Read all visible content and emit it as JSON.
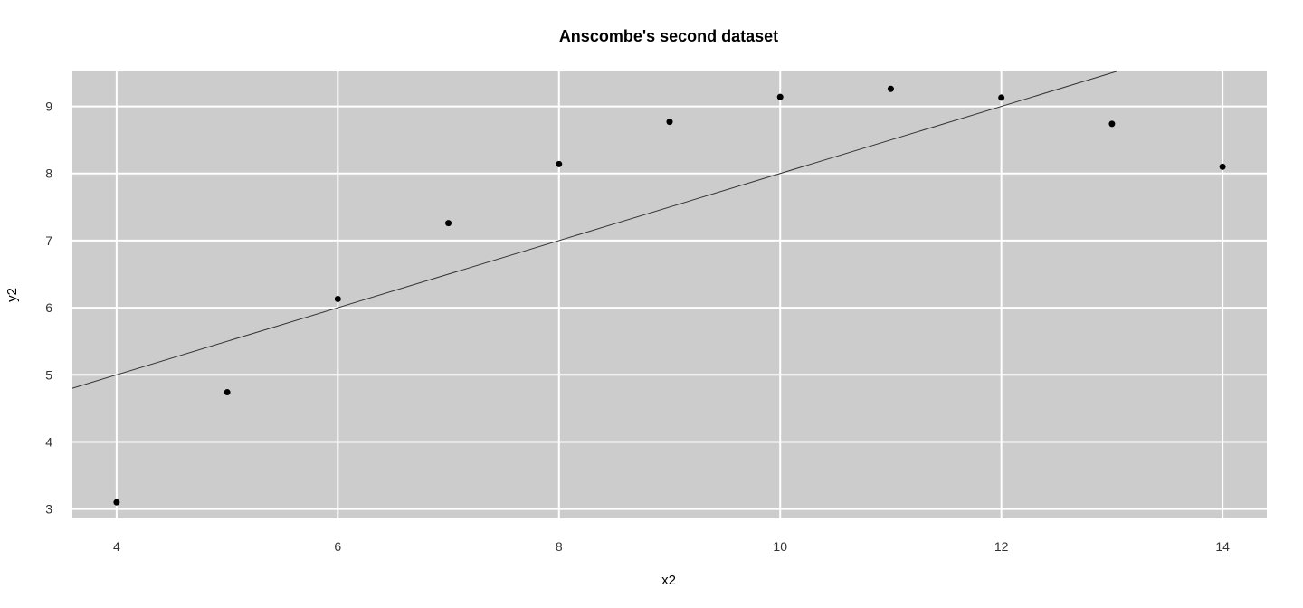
{
  "chart_data": {
    "type": "scatter",
    "title": "Anscombe's second dataset",
    "xlabel": "x2",
    "ylabel": "y2",
    "xlim": [
      3.6,
      14.4
    ],
    "ylim": [
      2.86,
      9.52
    ],
    "x_ticks": [
      4,
      6,
      8,
      10,
      12,
      14
    ],
    "y_ticks": [
      3,
      4,
      5,
      6,
      7,
      8,
      9
    ],
    "grid": true,
    "colors": {
      "panel_background": "#cccccc",
      "grid": "#ffffff",
      "points": "#000000",
      "line": "#333333"
    },
    "series": [
      {
        "x": [
          4,
          5,
          6,
          7,
          8,
          9,
          10,
          11,
          12,
          13,
          14
        ],
        "y": [
          3.1,
          4.74,
          6.13,
          7.26,
          8.14,
          8.77,
          9.14,
          9.26,
          9.13,
          8.74,
          8.1
        ]
      }
    ],
    "fit_line": {
      "intercept": 3.0,
      "slope": 0.5
    }
  }
}
